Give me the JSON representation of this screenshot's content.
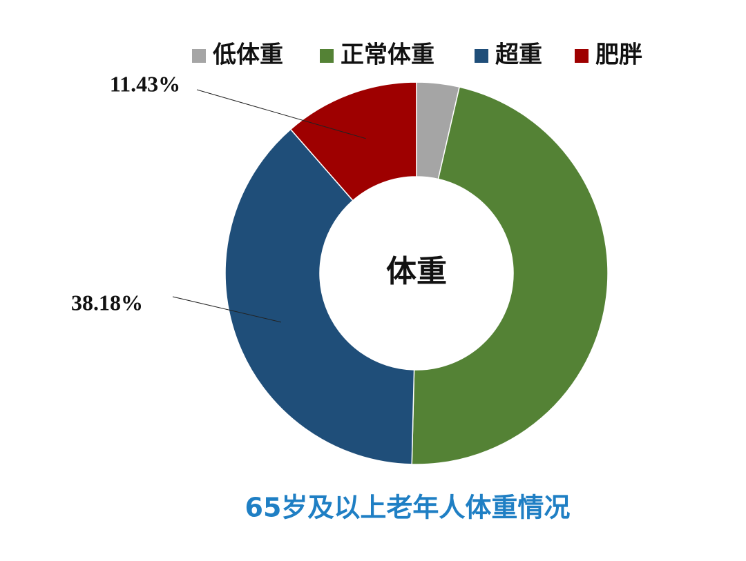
{
  "chart_data": {
    "type": "donut",
    "title": "65岁及以上老年人体重情况",
    "center_label": "体重",
    "categories": [
      "低体重",
      "正常体重",
      "超重",
      "肥胖"
    ],
    "values": [
      3.6,
      46.79,
      38.18,
      11.43
    ],
    "value_labels": [
      null,
      null,
      "38.18%",
      "11.43%"
    ],
    "colors": [
      "#a5a5a5",
      "#548235",
      "#1f4e79",
      "#9e0000"
    ],
    "legend": "top"
  }
}
